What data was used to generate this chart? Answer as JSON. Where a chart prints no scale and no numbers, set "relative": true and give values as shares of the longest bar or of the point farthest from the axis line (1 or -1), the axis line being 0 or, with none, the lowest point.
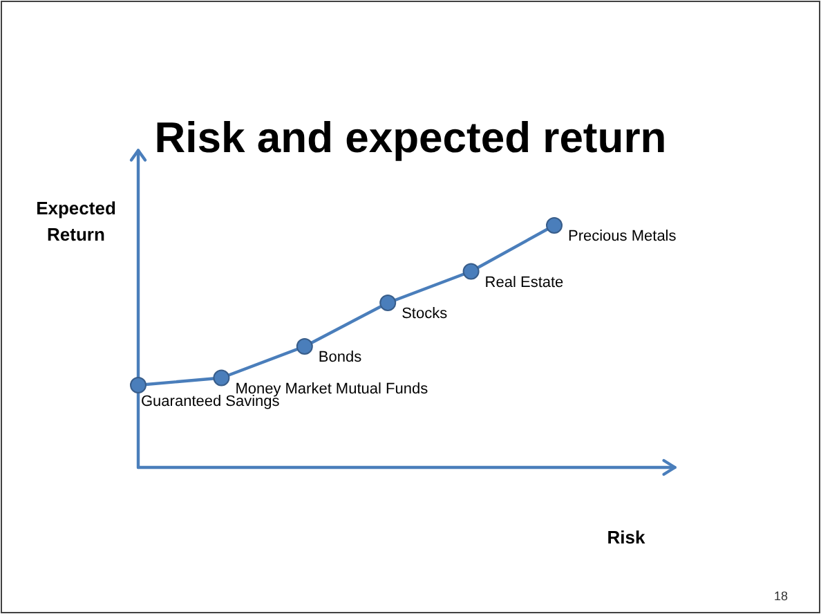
{
  "chart_data": {
    "type": "line",
    "title": "Risk and expected return",
    "xlabel": "Risk",
    "ylabel": "Expected Return",
    "relative": true,
    "marker": "circle",
    "categories": [
      null,
      null,
      null,
      null,
      null,
      null
    ],
    "series": [
      {
        "color": "#4a7ebb",
        "values": [
          0.34,
          0.37,
          0.5,
          0.68,
          0.81,
          1
        ]
      }
    ],
    "annotations": [
      "Guaranteed Savings",
      "Money Market Mutual Funds",
      "Bonds",
      "Stocks",
      "Real Estate",
      "Precious Metals",
      "18"
    ]
  }
}
